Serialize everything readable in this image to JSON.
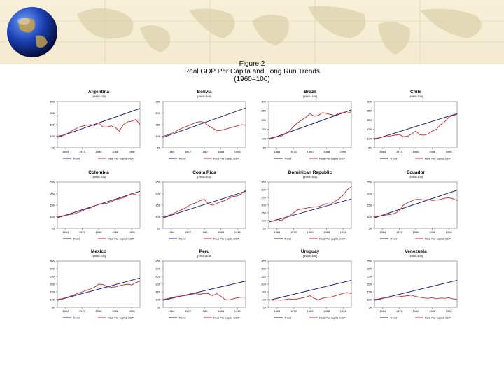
{
  "figure": {
    "label": "Figure 2",
    "title": "Real GDP Per Capita and Long Run Trends",
    "subtitle": "(1960=100)"
  },
  "colors": {
    "trend": "#1a237e",
    "gdp": "#c62828",
    "banner": "#f3ead0"
  },
  "chart_data": [
    {
      "type": "line",
      "title": "Argentina",
      "subtitle": "(1960=100)",
      "ylim": [
        50,
        250
      ],
      "yticks": [
        50,
        100,
        150,
        200,
        250
      ],
      "xlim": [
        1960,
        2000
      ],
      "xticks": [
        1964,
        1972,
        1980,
        1988,
        1996
      ],
      "legend": [
        "Trend",
        "Real Per capita GDP"
      ],
      "series": [
        {
          "name": "Trend",
          "x": [
            1960,
            2000
          ],
          "values": [
            95,
            220
          ]
        },
        {
          "name": "Real Per capita GDP",
          "x": [
            1960,
            1962,
            1964,
            1966,
            1968,
            1970,
            1972,
            1974,
            1976,
            1978,
            1980,
            1982,
            1984,
            1986,
            1988,
            1990,
            1992,
            1994,
            1996,
            1998,
            2000
          ],
          "values": [
            100,
            103,
            108,
            118,
            128,
            138,
            143,
            148,
            150,
            146,
            158,
            140,
            140,
            145,
            138,
            122,
            150,
            162,
            165,
            172,
            150
          ]
        }
      ]
    },
    {
      "type": "line",
      "title": "Bolivia",
      "subtitle": "(1960=100)",
      "ylim": [
        50,
        250
      ],
      "yticks": [
        50,
        100,
        150,
        200,
        250
      ],
      "xlim": [
        1960,
        2000
      ],
      "xticks": [
        1964,
        1972,
        1980,
        1988,
        1996
      ],
      "legend": [
        "Trend",
        "Real Per capita GDP"
      ],
      "series": [
        {
          "name": "Trend",
          "x": [
            1960,
            2000
          ],
          "values": [
            95,
            222
          ]
        },
        {
          "name": "Real Per capita GDP",
          "x": [
            1960,
            1962,
            1964,
            1966,
            1968,
            1970,
            1972,
            1974,
            1976,
            1978,
            1980,
            1982,
            1984,
            1986,
            1988,
            1990,
            1992,
            1994,
            1996,
            1998,
            2000
          ],
          "values": [
            100,
            105,
            112,
            120,
            130,
            138,
            145,
            152,
            160,
            163,
            160,
            145,
            135,
            125,
            125,
            130,
            135,
            140,
            145,
            150,
            148
          ]
        }
      ]
    },
    {
      "type": "line",
      "title": "Brazil",
      "subtitle": "(1960=100)",
      "ylim": [
        50,
        300
      ],
      "yticks": [
        50,
        100,
        150,
        200,
        250,
        300
      ],
      "xlim": [
        1960,
        2000
      ],
      "xticks": [
        1964,
        1972,
        1980,
        1988,
        1996
      ],
      "legend": [
        "Trend",
        "Real Per capita GDP"
      ],
      "series": [
        {
          "name": "Trend",
          "x": [
            1960,
            2000
          ],
          "values": [
            95,
            255
          ]
        },
        {
          "name": "Real Per capita GDP",
          "x": [
            1960,
            1962,
            1964,
            1966,
            1968,
            1970,
            1972,
            1974,
            1976,
            1978,
            1980,
            1982,
            1984,
            1986,
            1988,
            1990,
            1992,
            1994,
            1996,
            1998,
            2000
          ],
          "values": [
            100,
            106,
            108,
            112,
            125,
            140,
            165,
            185,
            200,
            215,
            235,
            220,
            225,
            240,
            235,
            230,
            225,
            238,
            240,
            238,
            245
          ]
        }
      ]
    },
    {
      "type": "line",
      "title": "Chile",
      "subtitle": "(1960=100)",
      "ylim": [
        50,
        300
      ],
      "yticks": [
        50,
        100,
        150,
        200,
        250,
        300
      ],
      "xlim": [
        1960,
        2000
      ],
      "xticks": [
        1964,
        1972,
        1980,
        1988,
        1996
      ],
      "legend": [
        "Trend",
        "Real Per capita GDP"
      ],
      "series": [
        {
          "name": "Trend",
          "x": [
            1960,
            2000
          ],
          "values": [
            95,
            235
          ]
        },
        {
          "name": "Real Per capita GDP",
          "x": [
            1960,
            1962,
            1964,
            1966,
            1968,
            1970,
            1972,
            1974,
            1976,
            1978,
            1980,
            1982,
            1984,
            1986,
            1988,
            1990,
            1992,
            1994,
            1996,
            1998,
            2000
          ],
          "values": [
            100,
            103,
            108,
            110,
            114,
            118,
            122,
            110,
            112,
            125,
            140,
            120,
            118,
            125,
            140,
            150,
            175,
            190,
            215,
            225,
            230
          ]
        }
      ]
    },
    {
      "type": "line",
      "title": "Colombia",
      "subtitle": "(1960=100)",
      "ylim": [
        50,
        250
      ],
      "yticks": [
        50,
        100,
        150,
        200,
        250
      ],
      "xlim": [
        1960,
        2000
      ],
      "xticks": [
        1964,
        1972,
        1980,
        1988,
        1996
      ],
      "legend": [
        "Trend",
        "Real Per capita GDP"
      ],
      "series": [
        {
          "name": "Trend",
          "x": [
            1960,
            2000
          ],
          "values": [
            95,
            210
          ]
        },
        {
          "name": "Real Per capita GDP",
          "x": [
            1960,
            1962,
            1964,
            1966,
            1968,
            1970,
            1972,
            1974,
            1976,
            1978,
            1980,
            1982,
            1984,
            1986,
            1988,
            1990,
            1992,
            1994,
            1996,
            1998,
            2000
          ],
          "values": [
            100,
            103,
            106,
            109,
            112,
            118,
            125,
            133,
            138,
            146,
            155,
            157,
            158,
            165,
            172,
            178,
            182,
            192,
            200,
            195,
            192
          ]
        }
      ]
    },
    {
      "type": "line",
      "title": "Costa Rica",
      "subtitle": "(1960=100)",
      "ylim": [
        50,
        250
      ],
      "yticks": [
        50,
        100,
        150,
        200,
        250
      ],
      "xlim": [
        1960,
        2000
      ],
      "xticks": [
        1964,
        1972,
        1980,
        1988,
        1996
      ],
      "legend": [
        "Trend",
        "Real Per capita GDP"
      ],
      "series": [
        {
          "name": "Trend",
          "x": [
            1960,
            2000
          ],
          "values": [
            95,
            210
          ]
        },
        {
          "name": "Real Per capita GDP",
          "x": [
            1960,
            1962,
            1964,
            1966,
            1968,
            1970,
            1972,
            1974,
            1976,
            1978,
            1980,
            1982,
            1984,
            1986,
            1988,
            1990,
            1992,
            1994,
            1996,
            1998,
            2000
          ],
          "values": [
            100,
            103,
            110,
            118,
            126,
            134,
            145,
            155,
            160,
            170,
            175,
            155,
            150,
            158,
            165,
            170,
            180,
            188,
            190,
            200,
            215
          ]
        }
      ]
    },
    {
      "type": "line",
      "title": "Dominican Republic",
      "subtitle": "(1960=100)",
      "ylim": [
        50,
        350
      ],
      "yticks": [
        50,
        100,
        150,
        200,
        250,
        300,
        350
      ],
      "xlim": [
        1960,
        2000
      ],
      "xticks": [
        1964,
        1972,
        1980,
        1988,
        1996
      ],
      "legend": [
        "Trend",
        "Real Per capita GDP"
      ],
      "series": [
        {
          "name": "Trend",
          "x": [
            1960,
            2000
          ],
          "values": [
            90,
            240
          ]
        },
        {
          "name": "Real Per capita GDP",
          "x": [
            1960,
            1962,
            1964,
            1966,
            1968,
            1970,
            1972,
            1974,
            1976,
            1978,
            1980,
            1982,
            1984,
            1986,
            1988,
            1990,
            1992,
            1994,
            1996,
            1998,
            2000
          ],
          "values": [
            100,
            95,
            108,
            100,
            115,
            130,
            150,
            170,
            175,
            180,
            185,
            188,
            190,
            200,
            210,
            205,
            225,
            240,
            265,
            300,
            320
          ]
        }
      ]
    },
    {
      "type": "line",
      "title": "Ecuador",
      "subtitle": "(1960=100)",
      "ylim": [
        50,
        250
      ],
      "yticks": [
        50,
        100,
        150,
        200,
        250
      ],
      "xlim": [
        1960,
        2000
      ],
      "xticks": [
        1964,
        1972,
        1980,
        1988,
        1996
      ],
      "legend": [
        "Trend",
        "Real Per capita GDP"
      ],
      "series": [
        {
          "name": "Trend",
          "x": [
            1960,
            2000
          ],
          "values": [
            95,
            215
          ]
        },
        {
          "name": "Real Per capita GDP",
          "x": [
            1960,
            1962,
            1964,
            1966,
            1968,
            1970,
            1972,
            1974,
            1976,
            1978,
            1980,
            1982,
            1984,
            1986,
            1988,
            1990,
            1992,
            1994,
            1996,
            1998,
            2000
          ],
          "values": [
            100,
            102,
            105,
            108,
            110,
            115,
            125,
            150,
            160,
            168,
            175,
            175,
            172,
            175,
            170,
            172,
            175,
            180,
            182,
            178,
            170
          ]
        }
      ]
    },
    {
      "type": "line",
      "title": "Mexico",
      "subtitle": "(1960=100)",
      "ylim": [
        50,
        350
      ],
      "yticks": [
        50,
        100,
        150,
        200,
        250,
        300,
        350
      ],
      "xlim": [
        1960,
        2000
      ],
      "xticks": [
        1964,
        1972,
        1980,
        1988,
        1996
      ],
      "legend": [
        "Trend",
        "Real Per capita GDP"
      ],
      "series": [
        {
          "name": "Trend",
          "x": [
            1960,
            2000
          ],
          "values": [
            95,
            240
          ]
        },
        {
          "name": "Real Per capita GDP",
          "x": [
            1960,
            1962,
            1964,
            1966,
            1968,
            1970,
            1972,
            1974,
            1976,
            1978,
            1980,
            1982,
            1984,
            1986,
            1988,
            1990,
            1992,
            1994,
            1996,
            1998,
            2000
          ],
          "values": [
            100,
            105,
            112,
            120,
            130,
            140,
            150,
            160,
            168,
            180,
            200,
            198,
            185,
            180,
            182,
            190,
            195,
            200,
            195,
            210,
            220
          ]
        }
      ]
    },
    {
      "type": "line",
      "title": "Peru",
      "subtitle": "(1960=100)",
      "ylim": [
        50,
        350
      ],
      "yticks": [
        50,
        100,
        150,
        200,
        250,
        300,
        350
      ],
      "xlim": [
        1960,
        2000
      ],
      "xticks": [
        1964,
        1972,
        1980,
        1988,
        1996
      ],
      "legend": [
        "Trend",
        "Real Per capita GDP"
      ],
      "series": [
        {
          "name": "Trend",
          "x": [
            1960,
            2000
          ],
          "values": [
            95,
            220
          ]
        },
        {
          "name": "Real Per capita GDP",
          "x": [
            1960,
            1962,
            1964,
            1966,
            1968,
            1970,
            1972,
            1974,
            1976,
            1978,
            1980,
            1982,
            1984,
            1986,
            1988,
            1990,
            1992,
            1994,
            1996,
            1998,
            2000
          ],
          "values": [
            100,
            106,
            112,
            118,
            122,
            125,
            128,
            135,
            138,
            134,
            140,
            138,
            125,
            138,
            122,
            100,
            98,
            105,
            112,
            115,
            115
          ]
        }
      ]
    },
    {
      "type": "line",
      "title": "Uruguay",
      "subtitle": "(1960=100)",
      "ylim": [
        50,
        350
      ],
      "yticks": [
        50,
        100,
        150,
        200,
        250,
        300,
        350
      ],
      "xlim": [
        1960,
        2000
      ],
      "xticks": [
        1964,
        1972,
        1980,
        1988,
        1996
      ],
      "legend": [
        "Trend",
        "Real Per capita GDP"
      ],
      "series": [
        {
          "name": "Trend",
          "x": [
            1960,
            2000
          ],
          "values": [
            95,
            225
          ]
        },
        {
          "name": "Real Per capita GDP",
          "x": [
            1960,
            1962,
            1964,
            1966,
            1968,
            1970,
            1972,
            1974,
            1976,
            1978,
            1980,
            1982,
            1984,
            1986,
            1988,
            1990,
            1992,
            1994,
            1996,
            1998,
            2000
          ],
          "values": [
            100,
            96,
            98,
            96,
            100,
            104,
            100,
            105,
            110,
            116,
            125,
            108,
            98,
            108,
            114,
            116,
            124,
            132,
            140,
            145,
            138
          ]
        }
      ]
    },
    {
      "type": "line",
      "title": "Venezuela",
      "subtitle": "(1960=100)",
      "ylim": [
        50,
        350
      ],
      "yticks": [
        50,
        100,
        150,
        200,
        250,
        300,
        350
      ],
      "xlim": [
        1960,
        2000
      ],
      "xticks": [
        1964,
        1972,
        1980,
        1988,
        1996
      ],
      "legend": [
        "Trend",
        "Real Per capita GDP"
      ],
      "series": [
        {
          "name": "Trend",
          "x": [
            1960,
            2000
          ],
          "values": [
            95,
            225
          ]
        },
        {
          "name": "Real Per capita GDP",
          "x": [
            1960,
            1962,
            1964,
            1966,
            1968,
            1970,
            1972,
            1974,
            1976,
            1978,
            1980,
            1982,
            1984,
            1986,
            1988,
            1990,
            1992,
            1994,
            1996,
            1998,
            2000
          ],
          "values": [
            100,
            104,
            110,
            112,
            115,
            117,
            118,
            122,
            125,
            128,
            120,
            115,
            110,
            108,
            112,
            105,
            110,
            108,
            112,
            105,
            100
          ]
        }
      ]
    }
  ]
}
